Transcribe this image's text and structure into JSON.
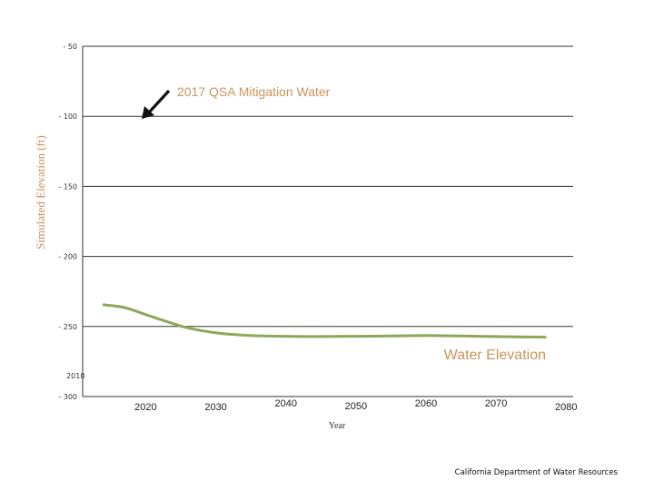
{
  "chart_data": {
    "type": "line",
    "title": "",
    "xlabel": "Year",
    "ylabel": "Simulated Elevation (ft)",
    "ylim": [
      -300,
      -50
    ],
    "yticks": [
      -50,
      -100,
      -150,
      -200,
      -250,
      -300
    ],
    "ytick_labels": [
      "- 50",
      "- 100",
      "- 150",
      "- 200",
      "- 250",
      "- 300"
    ],
    "xticks": [
      {
        "year": 2010,
        "label": "2010"
      },
      {
        "year": 2020,
        "label": "2020"
      },
      {
        "year": 2030,
        "label": "2030"
      },
      {
        "year": 2040,
        "label": "2040"
      },
      {
        "year": 2050,
        "label": "2050"
      },
      {
        "year": 2060,
        "label": "2060"
      },
      {
        "year": 2070,
        "label": "2070"
      },
      {
        "year": 2080,
        "label": "2080"
      }
    ],
    "grid": true,
    "series": [
      {
        "name": "Water Elevation",
        "color": "#8ea85a",
        "x": [
          2014,
          2017,
          2020,
          2023,
          2026,
          2030,
          2035,
          2040,
          2045,
          2050,
          2055,
          2060,
          2065,
          2070,
          2075,
          2077
        ],
        "y": [
          -234.5,
          -236.5,
          -241.5,
          -246.5,
          -251,
          -254.5,
          -256.5,
          -257,
          -257.2,
          -257,
          -256.8,
          -256.5,
          -256.8,
          -257.2,
          -257.5,
          -257.6
        ]
      }
    ],
    "annotations": [
      {
        "text": "2017 QSA Mitigation Water",
        "target_x": 2017,
        "target_y": -101
      }
    ],
    "legend": {
      "label": "Water Elevation",
      "placement": "bottom-right",
      "color": "#c8955a"
    }
  },
  "footer": {
    "credit": "California Department of Water Resources"
  },
  "colors": {
    "grid": "#333333",
    "axis_text": "#c8955a",
    "series": "#8ea85a"
  }
}
